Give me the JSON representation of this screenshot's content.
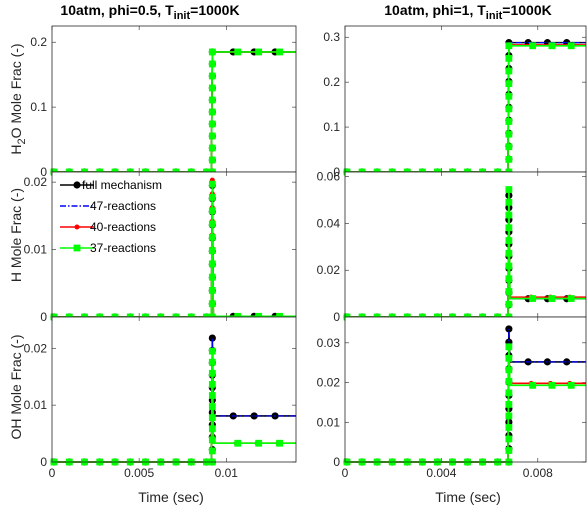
{
  "figure": {
    "titles": [
      "10atm, phi=0.5, T_init=1000K",
      "10atm, phi=1, T_init=1000K"
    ],
    "title_parts": [
      {
        "main": "10atm, phi=0.5, T",
        "sub": "init",
        "tail": "=1000K"
      },
      {
        "main": "10atm, phi=1, T",
        "sub": "init",
        "tail": "=1000K"
      }
    ],
    "ylabels": [
      {
        "main": "H",
        "sub": "2",
        "tail": "O Mole Frac (-)"
      },
      {
        "main": "H Mole Frac (-)",
        "sub": "",
        "tail": ""
      },
      {
        "main": "OH Mole Frac (-)",
        "sub": "",
        "tail": ""
      }
    ],
    "xlabel": "Time (sec)"
  },
  "legend": {
    "placement": "upper-left of middle-left panel",
    "entries": [
      {
        "label": "full mechanism",
        "color": "#000000",
        "marker": "circle",
        "style": "solid"
      },
      {
        "label": "47-reactions",
        "color": "#0000ff",
        "marker": "none",
        "style": "dash-dot"
      },
      {
        "label": "40-reactions",
        "color": "#ff0000",
        "marker": "small-dot",
        "style": "solid"
      },
      {
        "label": "37-reactions",
        "color": "#00ff00",
        "marker": "square",
        "style": "solid"
      }
    ]
  },
  "chart_data": [
    {
      "type": "line",
      "column": 0,
      "row": 0,
      "xlim": [
        0,
        0.014
      ],
      "ylim": [
        0,
        0.225
      ],
      "xticks": [
        0,
        0.005,
        0.01
      ],
      "xticklabels": [
        "0",
        "0.005",
        "0.01"
      ],
      "yticks": [
        0,
        0.1,
        0.2
      ],
      "yticklabels": [
        "0",
        "0.1",
        "0.2"
      ],
      "ignition_time": 0.0092,
      "series": [
        {
          "name": "full mechanism",
          "pre": 0,
          "peak": 0.185,
          "post": 0.185
        },
        {
          "name": "47-reactions",
          "pre": 0,
          "peak": 0.185,
          "post": 0.185
        },
        {
          "name": "40-reactions",
          "pre": 0,
          "peak": 0.185,
          "post": 0.185
        },
        {
          "name": "37-reactions",
          "pre": 0,
          "peak": 0.185,
          "post": 0.185
        }
      ]
    },
    {
      "type": "line",
      "column": 0,
      "row": 1,
      "xlim": [
        0,
        0.014
      ],
      "ylim": [
        0,
        0.0215
      ],
      "xticks": [
        0,
        0.005,
        0.01
      ],
      "xticklabels": [
        "0",
        "0.005",
        "0.01"
      ],
      "yticks": [
        0,
        0.01,
        0.02
      ],
      "yticklabels": [
        "0",
        "0.01",
        "0.02"
      ],
      "ignition_time": 0.0092,
      "series": [
        {
          "name": "full mechanism",
          "pre": 0,
          "peak": 0.0195,
          "post": 0.0001
        },
        {
          "name": "47-reactions",
          "pre": 0,
          "peak": 0.0195,
          "post": 0.0001
        },
        {
          "name": "40-reactions",
          "pre": 0,
          "peak": 0.0203,
          "post": 0.0001
        },
        {
          "name": "37-reactions",
          "pre": 0,
          "peak": 0.0197,
          "post": 0.0001
        }
      ]
    },
    {
      "type": "line",
      "column": 0,
      "row": 2,
      "xlim": [
        0,
        0.014
      ],
      "ylim": [
        0,
        0.0255
      ],
      "xticks": [
        0,
        0.005,
        0.01
      ],
      "xticklabels": [
        "0",
        "0.005",
        "0.01"
      ],
      "yticks": [
        0,
        0.01,
        0.02
      ],
      "yticklabels": [
        "0",
        "0.01",
        "0.02"
      ],
      "ignition_time": 0.0092,
      "series": [
        {
          "name": "full mechanism",
          "pre": 0,
          "peak": 0.0218,
          "post": 0.0081
        },
        {
          "name": "47-reactions",
          "pre": 0,
          "peak": 0.0218,
          "post": 0.0081
        },
        {
          "name": "40-reactions",
          "pre": 0,
          "peak": 0.0195,
          "post": 0.0033
        },
        {
          "name": "37-reactions",
          "pre": 0,
          "peak": 0.0195,
          "post": 0.0033
        }
      ]
    },
    {
      "type": "line",
      "column": 1,
      "row": 0,
      "xlim": [
        0,
        0.01
      ],
      "ylim": [
        0,
        0.325
      ],
      "xticks": [
        0,
        0.004,
        0.008
      ],
      "xticklabels": [
        "0",
        "0.004",
        "0.008"
      ],
      "yticks": [
        0,
        0.1,
        0.2,
        0.3
      ],
      "yticklabels": [
        "0",
        "0.1",
        "0.2",
        "0.3"
      ],
      "ignition_time": 0.0068,
      "series": [
        {
          "name": "full mechanism",
          "pre": 0,
          "peak": 0.288,
          "post": 0.288
        },
        {
          "name": "47-reactions",
          "pre": 0,
          "peak": 0.288,
          "post": 0.288
        },
        {
          "name": "40-reactions",
          "pre": 0,
          "peak": 0.283,
          "post": 0.283
        },
        {
          "name": "37-reactions",
          "pre": 0,
          "peak": 0.281,
          "post": 0.281
        }
      ]
    },
    {
      "type": "line",
      "column": 1,
      "row": 1,
      "xlim": [
        0,
        0.01
      ],
      "ylim": [
        0,
        0.062
      ],
      "xticks": [
        0,
        0.004,
        0.008
      ],
      "xticklabels": [
        "0",
        "0.004",
        "0.008"
      ],
      "yticks": [
        0,
        0.02,
        0.04,
        0.06
      ],
      "yticklabels": [
        "0",
        "0.02",
        "0.04",
        "0.06"
      ],
      "ignition_time": 0.0068,
      "series": [
        {
          "name": "full mechanism",
          "pre": 0,
          "peak": 0.052,
          "post": 0.0078
        },
        {
          "name": "47-reactions",
          "pre": 0,
          "peak": 0.052,
          "post": 0.0078
        },
        {
          "name": "40-reactions",
          "pre": 0,
          "peak": 0.054,
          "post": 0.0085
        },
        {
          "name": "37-reactions",
          "pre": 0,
          "peak": 0.0545,
          "post": 0.0079
        }
      ]
    },
    {
      "type": "line",
      "column": 1,
      "row": 2,
      "xlim": [
        0,
        0.01
      ],
      "ylim": [
        0,
        0.0365
      ],
      "xticks": [
        0,
        0.004,
        0.008
      ],
      "xticklabels": [
        "0",
        "0.004",
        "0.008"
      ],
      "yticks": [
        0,
        0.01,
        0.02,
        0.03
      ],
      "yticklabels": [
        "0",
        "0.01",
        "0.02",
        "0.03"
      ],
      "ignition_time": 0.0068,
      "series": [
        {
          "name": "full mechanism",
          "pre": 0,
          "peak": 0.0335,
          "post": 0.0252
        },
        {
          "name": "47-reactions",
          "pre": 0,
          "peak": 0.0335,
          "post": 0.0252
        },
        {
          "name": "40-reactions",
          "pre": 0,
          "peak": 0.029,
          "post": 0.0198
        },
        {
          "name": "37-reactions",
          "pre": 0,
          "peak": 0.029,
          "post": 0.0193
        }
      ]
    }
  ]
}
